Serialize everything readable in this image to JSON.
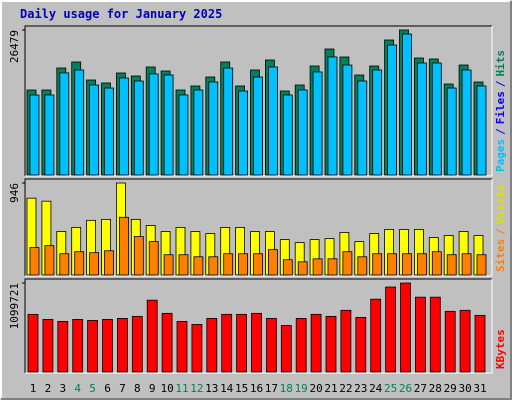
{
  "chart_data": [
    {
      "type": "bar",
      "title": "Daily usage for January 2025",
      "title_color": "#0000c0",
      "ylim": [
        0,
        26479
      ],
      "yticks": [
        26479
      ],
      "side_label": [
        "Pages",
        "/",
        "Files",
        "/",
        "Hits"
      ],
      "side_label_colors": [
        "#00c0ff",
        "#0000ff",
        "#0000ff",
        "#0000ff",
        "#00805c"
      ],
      "series": [
        {
          "name": "Hits",
          "color": "#00805c",
          "values": [
            15521,
            15521,
            19538,
            20634,
            17347,
            16799,
            18625,
            18077,
            19721,
            18990,
            15521,
            16251,
            17895,
            20634,
            16251,
            19173,
            20999,
            15338,
            16434,
            19903,
            23008,
            21547,
            18260,
            19903,
            24651,
            26479,
            21364,
            21182,
            16617,
            20086,
            16982
          ]
        },
        {
          "name": "Pages",
          "color": "#00c0ff",
          "values": [
            14970,
            14980,
            19010,
            19540,
            16800,
            16250,
            18080,
            17530,
            18820,
            18630,
            14980,
            15890,
            17350,
            19900,
            15700,
            18260,
            20090,
            14980,
            15890,
            19180,
            21920,
            20450,
            17530,
            19540,
            24100,
            26100,
            20820,
            20820,
            16250,
            19540,
            16620
          ]
        }
      ]
    },
    {
      "type": "bar",
      "ylim": [
        0,
        946
      ],
      "yticks": [
        946
      ],
      "side_label": [
        "Sites",
        "/",
        "Visits"
      ],
      "side_label_colors": [
        "#ff8000",
        "#ff8000",
        "#e0e000"
      ],
      "series": [
        {
          "name": "Visits",
          "color": "#ffff00",
          "values": [
            790,
            759,
            447,
            489,
            562,
            572,
            946,
            572,
            510,
            447,
            489,
            447,
            426,
            489,
            489,
            447,
            447,
            364,
            333,
            364,
            374,
            437,
            343,
            426,
            468,
            468,
            468,
            385,
            406,
            447,
            406
          ]
        },
        {
          "name": "Sites",
          "color": "#ff8000",
          "values": [
            302,
            322,
            239,
            260,
            250,
            270,
            614,
            416,
            364,
            229,
            229,
            208,
            208,
            239,
            239,
            239,
            281,
            177,
            156,
            187,
            187,
            260,
            208,
            239,
            239,
            239,
            239,
            260,
            229,
            239,
            229
          ]
        }
      ]
    },
    {
      "type": "bar",
      "ylim": [
        0,
        1099721
      ],
      "yticks": [
        1099721
      ],
      "side_label": [
        "KBytes"
      ],
      "side_label_colors": [
        "#ff0000"
      ],
      "categories": [
        "1",
        "2",
        "3",
        "4",
        "5",
        "6",
        "7",
        "8",
        "9",
        "10",
        "11",
        "12",
        "13",
        "14",
        "15",
        "16",
        "17",
        "18",
        "19",
        "20",
        "21",
        "22",
        "23",
        "24",
        "25",
        "26",
        "27",
        "28",
        "29",
        "30",
        "31"
      ],
      "category_colors": [
        "#000000",
        "#000000",
        "#000000",
        "#00805c",
        "#00805c",
        "#000000",
        "#000000",
        "#000000",
        "#000000",
        "#000000",
        "#00805c",
        "#00805c",
        "#000000",
        "#000000",
        "#000000",
        "#000000",
        "#000000",
        "#00805c",
        "#00805c",
        "#000000",
        "#000000",
        "#000000",
        "#000000",
        "#000000",
        "#00805c",
        "#00805c",
        "#000000",
        "#000000",
        "#000000",
        "#000000",
        "#000000"
      ],
      "series": [
        {
          "name": "KBytes",
          "color": "#ff0000",
          "values": [
            712329,
            649844,
            624850,
            649844,
            637347,
            649844,
            662341,
            687335,
            887287,
            724826,
            624850,
            587359,
            662341,
            712329,
            712329,
            724826,
            662341,
            574862,
            662341,
            712329,
            687335,
            762317,
            674838,
            899784,
            1049748,
            1099721,
            924778,
            924778,
            749820,
            762317,
            699832
          ]
        }
      ]
    }
  ]
}
